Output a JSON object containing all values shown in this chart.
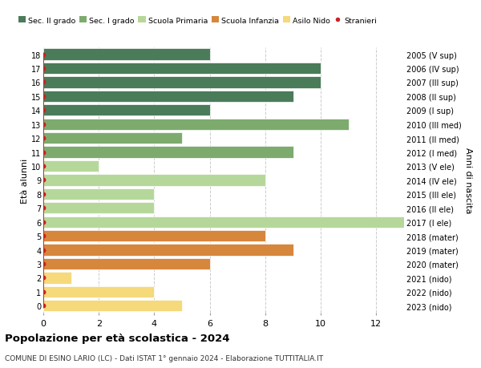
{
  "ages": [
    18,
    17,
    16,
    15,
    14,
    13,
    12,
    11,
    10,
    9,
    8,
    7,
    6,
    5,
    4,
    3,
    2,
    1,
    0
  ],
  "right_labels": [
    "2005 (V sup)",
    "2006 (IV sup)",
    "2007 (III sup)",
    "2008 (II sup)",
    "2009 (I sup)",
    "2010 (III med)",
    "2011 (II med)",
    "2012 (I med)",
    "2013 (V ele)",
    "2014 (IV ele)",
    "2015 (III ele)",
    "2016 (II ele)",
    "2017 (I ele)",
    "2018 (mater)",
    "2019 (mater)",
    "2020 (mater)",
    "2021 (nido)",
    "2022 (nido)",
    "2023 (nido)"
  ],
  "bar_values": [
    6,
    10,
    10,
    9,
    6,
    11,
    5,
    9,
    2,
    8,
    4,
    4,
    13,
    8,
    9,
    6,
    1,
    4,
    5
  ],
  "bar_colors": [
    "#4a7c59",
    "#4a7c59",
    "#4a7c59",
    "#4a7c59",
    "#4a7c59",
    "#7dab6e",
    "#7dab6e",
    "#7dab6e",
    "#b5d89a",
    "#b5d89a",
    "#b5d89a",
    "#b5d89a",
    "#b5d89a",
    "#d6873b",
    "#d6873b",
    "#d6873b",
    "#f5d97a",
    "#f5d97a",
    "#f5d97a"
  ],
  "stranieri_x": [
    0,
    0,
    0,
    0,
    0,
    0,
    0,
    0,
    0,
    0,
    0,
    0,
    0,
    0,
    0,
    0,
    0,
    0,
    0
  ],
  "legend_labels": [
    "Sec. II grado",
    "Sec. I grado",
    "Scuola Primaria",
    "Scuola Infanzia",
    "Asilo Nido",
    "Stranieri"
  ],
  "legend_colors": [
    "#4a7c59",
    "#7dab6e",
    "#b5d89a",
    "#d6873b",
    "#f5d97a",
    "#cc2222"
  ],
  "title": "Popolazione per età scolastica - 2024",
  "subtitle": "COMUNE DI ESINO LARIO (LC) - Dati ISTAT 1° gennaio 2024 - Elaborazione TUTTITALIA.IT",
  "ylabel_left": "Età alunni",
  "ylabel_right": "Anni di nascita",
  "xlim": [
    0,
    13
  ],
  "xticks": [
    0,
    2,
    4,
    6,
    8,
    10,
    12
  ],
  "bg_color": "#ffffff",
  "grid_color": "#cccccc"
}
